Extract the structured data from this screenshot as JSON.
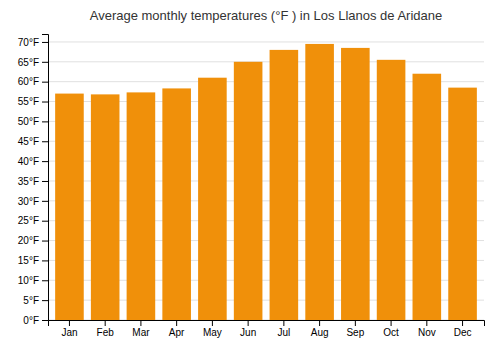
{
  "chart_data": {
    "type": "bar",
    "title": "Average monthly temperatures (°F ) in Los Llanos de Aridane",
    "categories": [
      "Jan",
      "Feb",
      "Mar",
      "Apr",
      "May",
      "Jun",
      "Jul",
      "Aug",
      "Sep",
      "Oct",
      "Nov",
      "Dec"
    ],
    "values": [
      57,
      56.8,
      57.3,
      58.3,
      61,
      65,
      68,
      69.5,
      68.5,
      65.5,
      62,
      58.5
    ],
    "color": "#F0900A",
    "ylim": [
      0,
      72
    ],
    "yticks": [
      {
        "value": 0,
        "label": "0°F"
      },
      {
        "value": 5,
        "label": "5°F"
      },
      {
        "value": 10,
        "label": "10°F"
      },
      {
        "value": 15,
        "label": "15°F"
      },
      {
        "value": 20,
        "label": "20°F"
      },
      {
        "value": 25,
        "label": "25°F"
      },
      {
        "value": 30,
        "label": "30°F"
      },
      {
        "value": 35,
        "label": "35°F"
      },
      {
        "value": 40,
        "label": "40°F"
      },
      {
        "value": 45,
        "label": "45°F"
      },
      {
        "value": 50,
        "label": "50°F"
      },
      {
        "value": 55,
        "label": "55°F"
      },
      {
        "value": 60,
        "label": "60°F"
      },
      {
        "value": 65,
        "label": "65°F"
      },
      {
        "value": 70,
        "label": "70°F"
      }
    ],
    "grid": true
  }
}
